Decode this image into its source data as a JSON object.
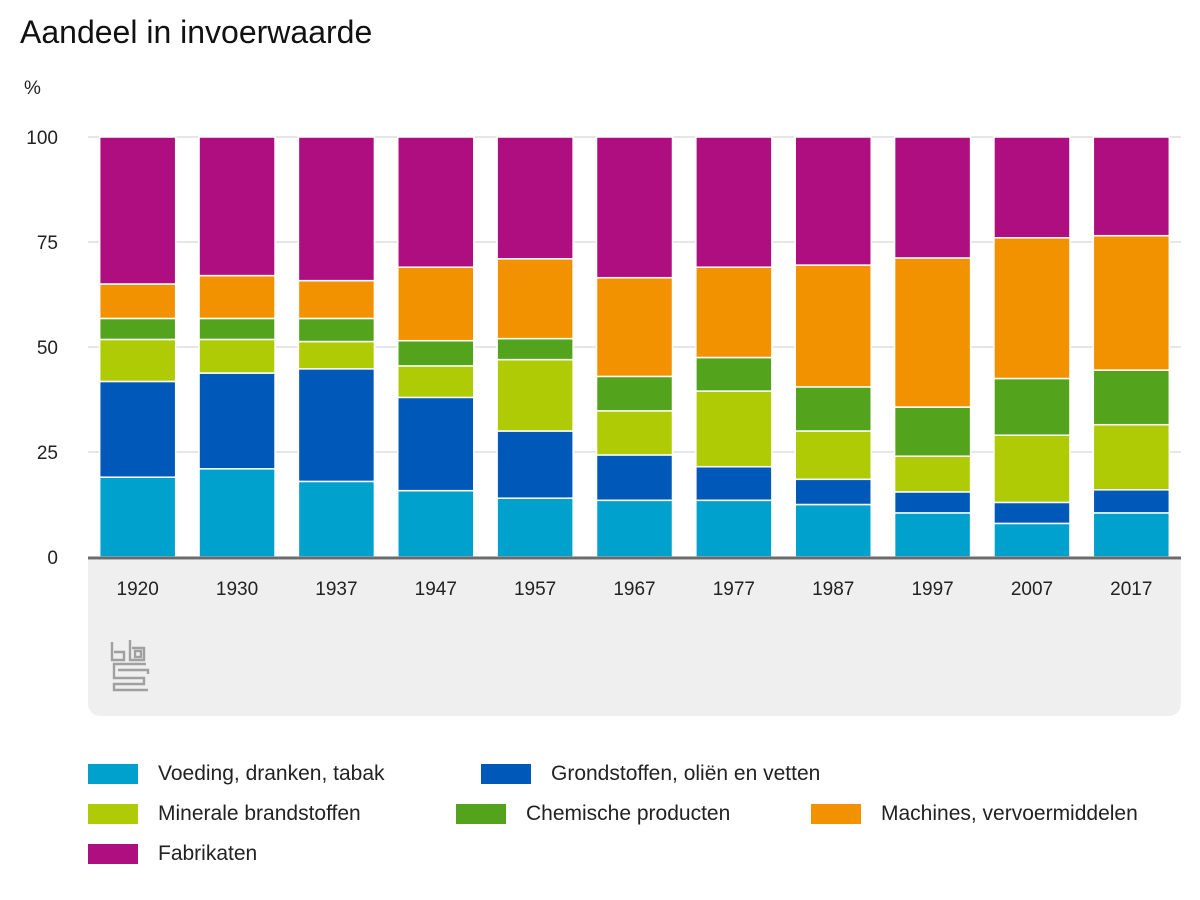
{
  "title": "Aandeel in invoerwaarde",
  "unit_label": "%",
  "source_logo": "cbs-logo",
  "chart_data": {
    "type": "bar",
    "stacked": true,
    "title": "Aandeel in invoerwaarde",
    "ylabel": "%",
    "xlabel": "",
    "ylim": [
      0,
      100
    ],
    "yticks": [
      0,
      25,
      50,
      75,
      100
    ],
    "grid": true,
    "legend_position": "bottom",
    "categories": [
      "1920",
      "1930",
      "1937",
      "1947",
      "1957",
      "1967",
      "1977",
      "1987",
      "1997",
      "2007",
      "2017"
    ],
    "series": [
      {
        "name": "Voeding, dranken, tabak",
        "color": "#00a1cd",
        "values": [
          19,
          21,
          18,
          15.8,
          14,
          13.5,
          13.5,
          12.5,
          10.5,
          8,
          10.5
        ]
      },
      {
        "name": "Grondstoffen, oliën en vetten",
        "color": "#0058b8",
        "values": [
          22.8,
          22.8,
          26.8,
          22.2,
          16,
          10.8,
          8,
          6,
          5,
          5,
          5.5
        ]
      },
      {
        "name": "Minerale brandstoffen",
        "color": "#afcb05",
        "values": [
          10,
          8,
          6.5,
          7.5,
          17,
          10.5,
          18,
          11.5,
          8.5,
          16,
          15.5
        ]
      },
      {
        "name": "Chemische producten",
        "color": "#53a31d",
        "values": [
          5,
          5,
          5.5,
          6,
          5,
          8.2,
          8,
          10.5,
          11.7,
          13.5,
          13
        ]
      },
      {
        "name": "Machines, vervoermiddelen",
        "color": "#f39200",
        "values": [
          8.2,
          10.2,
          9,
          17.5,
          19,
          23.5,
          21.5,
          29,
          35.5,
          33.5,
          32
        ]
      },
      {
        "name": "Fabrikaten",
        "color": "#af0e80",
        "values": [
          35,
          33,
          34.2,
          31,
          29,
          33.5,
          31,
          30.5,
          28.8,
          24,
          23.5
        ]
      }
    ]
  }
}
